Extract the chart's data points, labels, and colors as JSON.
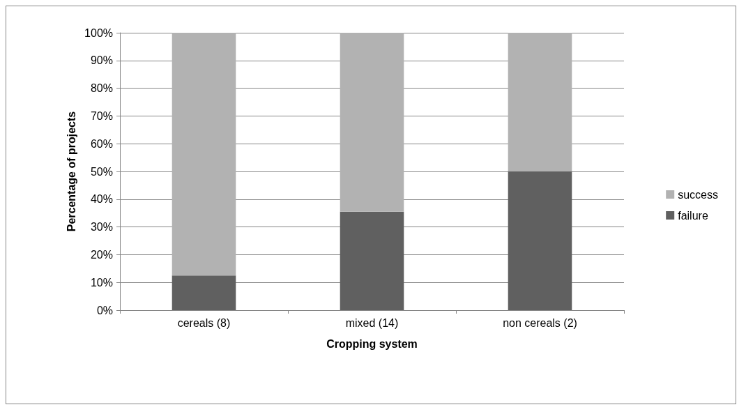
{
  "chart_data": {
    "type": "bar",
    "stacked": true,
    "xlabel": "Cropping system",
    "ylabel": "Percentage of projects",
    "categories": [
      "cereals (8)",
      "mixed (14)",
      "non cereals (2)"
    ],
    "series": [
      {
        "name": "failure",
        "color": "#606060",
        "values": [
          12.5,
          35.5,
          50
        ]
      },
      {
        "name": "success",
        "color": "#b2b2b2",
        "values": [
          87.5,
          64.5,
          50
        ]
      }
    ],
    "ylim": [
      0,
      100
    ],
    "yticks": [
      {
        "value": 0,
        "label": "0%"
      },
      {
        "value": 10,
        "label": "10%"
      },
      {
        "value": 20,
        "label": "20%"
      },
      {
        "value": 30,
        "label": "30%"
      },
      {
        "value": 40,
        "label": "40%"
      },
      {
        "value": 50,
        "label": "50%"
      },
      {
        "value": 60,
        "label": "60%"
      },
      {
        "value": 70,
        "label": "70%"
      },
      {
        "value": 80,
        "label": "80%"
      },
      {
        "value": 90,
        "label": "90%"
      },
      {
        "value": 100,
        "label": "100%"
      }
    ],
    "grid": "y",
    "legend": "right"
  }
}
